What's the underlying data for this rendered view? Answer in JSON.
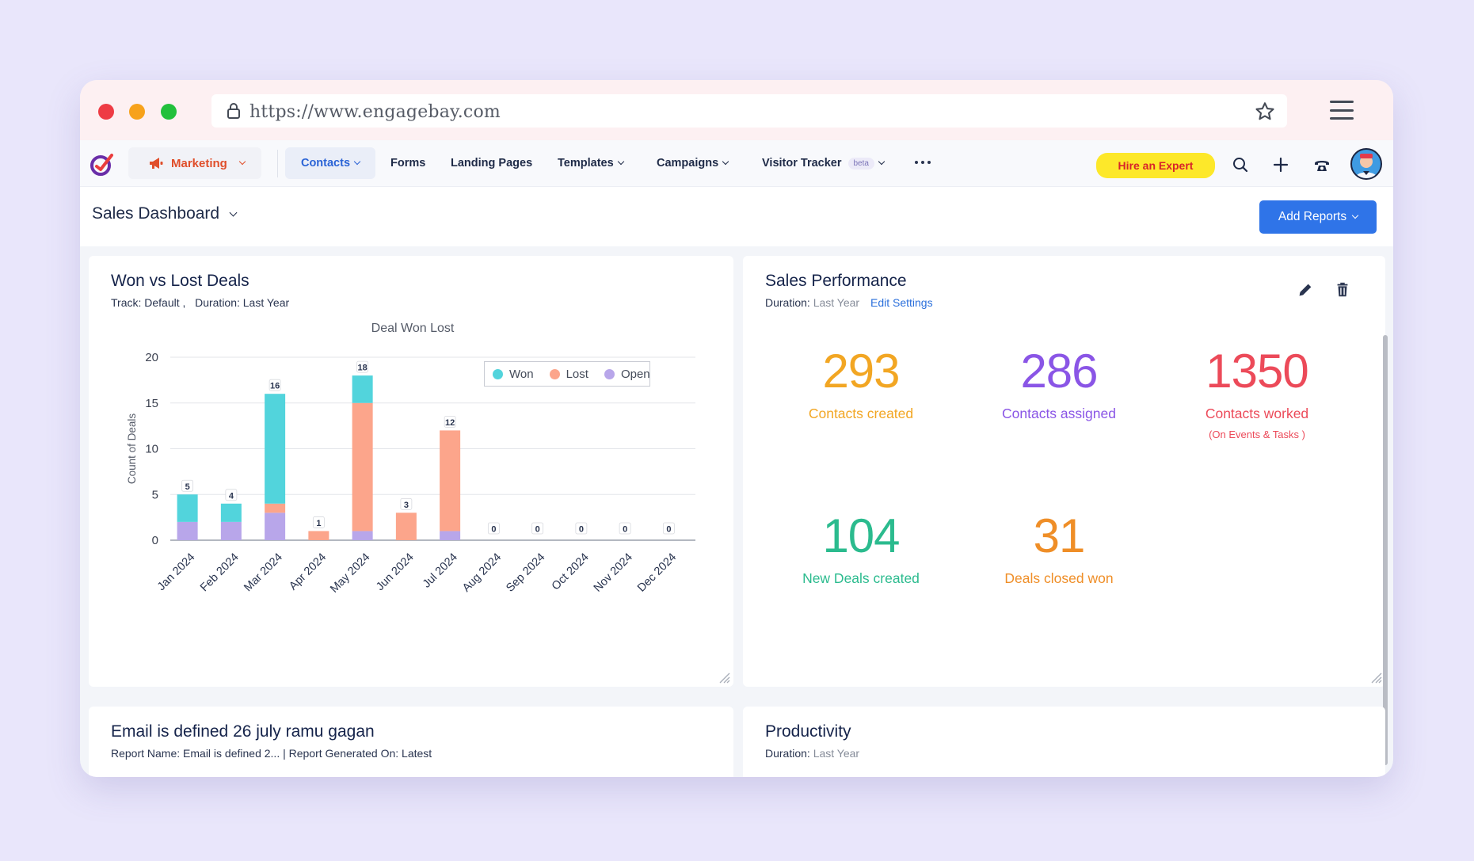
{
  "browser": {
    "url": "https://www.engagebay.com"
  },
  "nav": {
    "marketing_label": "Marketing",
    "items": [
      "Contacts",
      "Forms",
      "Landing Pages",
      "Templates",
      "Campaigns",
      "Visitor Tracker"
    ],
    "beta_badge": "beta",
    "hire_label": "Hire an Expert"
  },
  "page": {
    "title": "Sales Dashboard",
    "add_reports_label": "Add Reports"
  },
  "won_lost": {
    "title": "Won vs Lost Deals",
    "track_label": "Track: Default ,",
    "duration_label": "Duration: Last Year"
  },
  "chart_data": {
    "type": "bar",
    "stacked": true,
    "title": "Deal Won Lost",
    "xlabel": "",
    "ylabel": "Count of Deals",
    "ylim": [
      0,
      20
    ],
    "yticks": [
      0,
      5,
      10,
      15,
      20
    ],
    "categories": [
      "Jan 2024",
      "Feb 2024",
      "Mar 2024",
      "Apr 2024",
      "May 2024",
      "Jun 2024",
      "Jul 2024",
      "Aug 2024",
      "Sep 2024",
      "Oct 2024",
      "Nov 2024",
      "Dec 2024"
    ],
    "series": [
      {
        "name": "Open",
        "color": "#b8a6ea",
        "values": [
          2,
          2,
          3,
          0,
          1,
          0,
          1,
          0,
          0,
          0,
          0,
          0
        ]
      },
      {
        "name": "Lost",
        "color": "#fca58b",
        "values": [
          0,
          0,
          1,
          1,
          14,
          3,
          11,
          0,
          0,
          0,
          0,
          0
        ]
      },
      {
        "name": "Won",
        "color": "#52d4dc",
        "values": [
          3,
          2,
          12,
          0,
          3,
          0,
          0,
          0,
          0,
          0,
          0,
          0
        ]
      }
    ],
    "totals": [
      5,
      4,
      16,
      1,
      18,
      3,
      12,
      0,
      0,
      0,
      0,
      0
    ],
    "legend": {
      "position": "top-right",
      "order": [
        "Won",
        "Lost",
        "Open"
      ]
    },
    "grid": true
  },
  "sales_performance": {
    "title": "Sales Performance",
    "duration_label": "Duration:",
    "duration_value": "Last Year",
    "edit_settings_label": "Edit Settings",
    "metrics": [
      {
        "value": "293",
        "label": "Contacts created",
        "color": "#f2a623"
      },
      {
        "value": "286",
        "label": "Contacts assigned",
        "color": "#8a55e6"
      },
      {
        "value": "1350",
        "label": "Contacts worked",
        "note": "(On Events & Tasks )",
        "color": "#ec4a59"
      },
      {
        "value": "104",
        "label": "New Deals created",
        "color": "#2bbb8e"
      },
      {
        "value": "31",
        "label": "Deals closed won",
        "color": "#ef8e27"
      }
    ]
  },
  "email_report": {
    "title": "Email is defined 26 july ramu gagan",
    "subtitle": "Report Name: Email is defined 2...  | Report Generated On: Latest"
  },
  "productivity": {
    "title": "Productivity",
    "duration_label": "Duration:",
    "duration_value": "Last Year"
  },
  "colors": {
    "accent": "#2f74e8",
    "marketing": "#e04e2a",
    "hire_bg": "#fde82a",
    "hire_text": "#d8232a"
  }
}
